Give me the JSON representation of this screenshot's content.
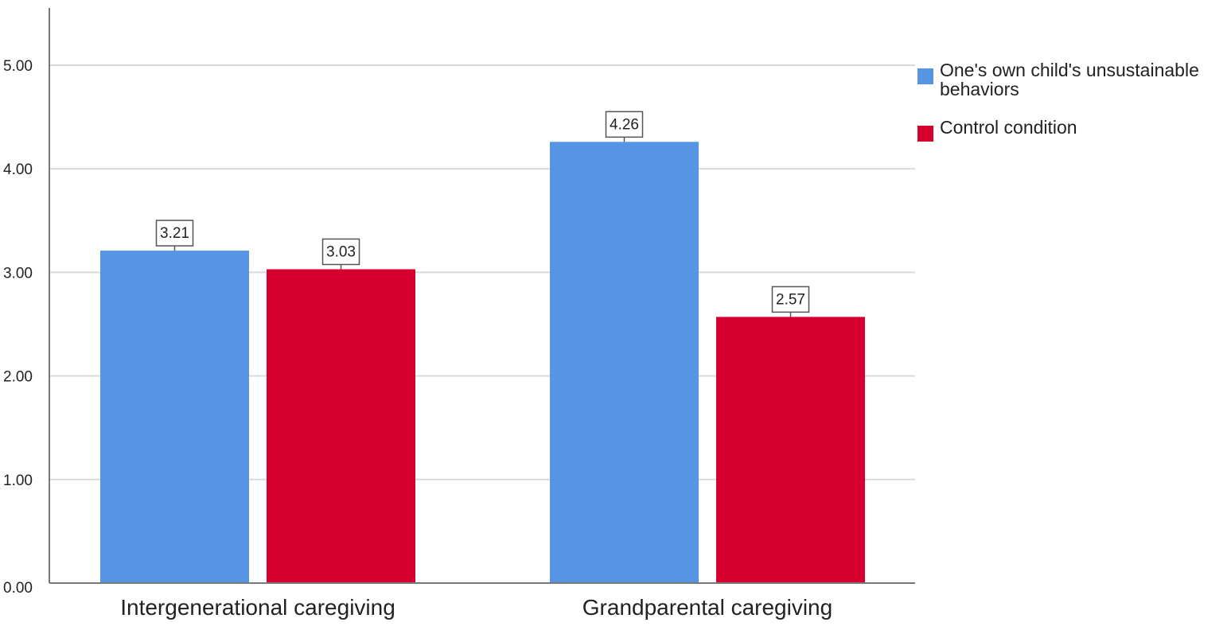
{
  "chart_data": {
    "type": "bar",
    "title": "",
    "xlabel": "",
    "ylabel": "",
    "categories": [
      "Intergenerational caregiving",
      "Grandparental caregiving"
    ],
    "series": [
      {
        "name": "One's own child's unsustainable behaviors",
        "values": [
          3.21,
          4.26
        ],
        "color": "#5595e3"
      },
      {
        "name": "Control condition",
        "values": [
          3.03,
          2.57
        ],
        "color": "#d5002e"
      }
    ],
    "data_labels": [
      [
        "3.21",
        "4.26"
      ],
      [
        "3.03",
        "2.57"
      ]
    ],
    "ylim": [
      0,
      5.5
    ],
    "yticks": [
      "0.00",
      "1.00",
      "2.00",
      "3.00",
      "4.00",
      "5.00"
    ],
    "grid": true,
    "legend": {
      "position": "top-right",
      "entries": [
        {
          "lines": [
            "One's own child's unsustainable",
            "behaviors"
          ],
          "color": "#5595e3"
        },
        {
          "lines": [
            "Control condition"
          ],
          "color": "#d5002e"
        }
      ]
    }
  }
}
